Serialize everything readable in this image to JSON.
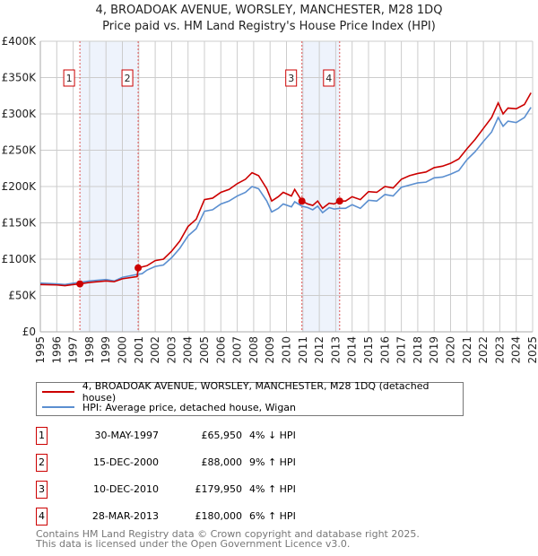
{
  "chart_data": {
    "type": "line",
    "title": "4, BROADOAK AVENUE, WORSLEY, MANCHESTER, M28 1DQ",
    "subtitle": "Price paid vs. HM Land Registry's House Price Index (HPI)",
    "xlim": [
      1995,
      2025
    ],
    "ylim": [
      0,
      400000
    ],
    "y_ticks": [
      {
        "v": 0,
        "label": "£0"
      },
      {
        "v": 50000,
        "label": "£50K"
      },
      {
        "v": 100000,
        "label": "£100K"
      },
      {
        "v": 150000,
        "label": "£150K"
      },
      {
        "v": 200000,
        "label": "£200K"
      },
      {
        "v": 250000,
        "label": "£250K"
      },
      {
        "v": 300000,
        "label": "£300K"
      },
      {
        "v": 350000,
        "label": "£350K"
      },
      {
        "v": 400000,
        "label": "£400K"
      }
    ],
    "x_ticks": [
      "1995",
      "1996",
      "1997",
      "1998",
      "1999",
      "2000",
      "2001",
      "2002",
      "2003",
      "2004",
      "2005",
      "2006",
      "2007",
      "2008",
      "2009",
      "2010",
      "2011",
      "2012",
      "2013",
      "2014",
      "2015",
      "2016",
      "2017",
      "2018",
      "2019",
      "2020",
      "2021",
      "2022",
      "2023",
      "2024",
      "2025"
    ],
    "grid": true,
    "colors": {
      "property": "#cc0000",
      "hpi": "#5b8fd0",
      "shade": "#eef3fc"
    },
    "series": [
      {
        "name": "4, BROADOAK AVENUE, WORSLEY, MANCHESTER, M28 1DQ (detached house)",
        "points": [
          [
            1995,
            65000
          ],
          [
            1996,
            64500
          ],
          [
            1996.5,
            63500
          ],
          [
            1997,
            65000
          ],
          [
            1997.41,
            65950
          ],
          [
            1998,
            68000
          ],
          [
            1999,
            70000
          ],
          [
            1999.5,
            69000
          ],
          [
            2000,
            73000
          ],
          [
            2000.9,
            76000
          ],
          [
            2000.96,
            88000
          ],
          [
            2001.5,
            91000
          ],
          [
            2002,
            98000
          ],
          [
            2002.5,
            100000
          ],
          [
            2003,
            111000
          ],
          [
            2003.5,
            125000
          ],
          [
            2004,
            145000
          ],
          [
            2004.5,
            155000
          ],
          [
            2005,
            182000
          ],
          [
            2005.5,
            184000
          ],
          [
            2006,
            192000
          ],
          [
            2006.5,
            196000
          ],
          [
            2007,
            204000
          ],
          [
            2007.5,
            210000
          ],
          [
            2007.9,
            219000
          ],
          [
            2008.3,
            215000
          ],
          [
            2008.8,
            197000
          ],
          [
            2009.1,
            180000
          ],
          [
            2009.5,
            186000
          ],
          [
            2009.8,
            192000
          ],
          [
            2010.3,
            187000
          ],
          [
            2010.5,
            196000
          ],
          [
            2010.94,
            179950
          ],
          [
            2011.3,
            176000
          ],
          [
            2011.6,
            174000
          ],
          [
            2011.9,
            180000
          ],
          [
            2012.2,
            170000
          ],
          [
            2012.6,
            177000
          ],
          [
            2012.9,
            176000
          ],
          [
            2013.24,
            180000
          ],
          [
            2013.6,
            180000
          ],
          [
            2014,
            186000
          ],
          [
            2014.5,
            182000
          ],
          [
            2015,
            193000
          ],
          [
            2015.5,
            192000
          ],
          [
            2016,
            200000
          ],
          [
            2016.5,
            198000
          ],
          [
            2017,
            210000
          ],
          [
            2017.5,
            215000
          ],
          [
            2018,
            218000
          ],
          [
            2018.5,
            220000
          ],
          [
            2019,
            226000
          ],
          [
            2019.5,
            228000
          ],
          [
            2020,
            232000
          ],
          [
            2020.5,
            238000
          ],
          [
            2021,
            252000
          ],
          [
            2021.5,
            265000
          ],
          [
            2022,
            280000
          ],
          [
            2022.5,
            295000
          ],
          [
            2022.9,
            315000
          ],
          [
            2023.2,
            300000
          ],
          [
            2023.5,
            308000
          ],
          [
            2024,
            307000
          ],
          [
            2024.5,
            313000
          ],
          [
            2024.9,
            329000
          ]
        ]
      },
      {
        "name": "HPI: Average price, detached house, Wigan",
        "points": [
          [
            1995,
            67000
          ],
          [
            1996,
            66000
          ],
          [
            1996.5,
            65000
          ],
          [
            1997,
            67000
          ],
          [
            1997.41,
            68000
          ],
          [
            1998,
            70000
          ],
          [
            1999,
            72000
          ],
          [
            1999.5,
            70000
          ],
          [
            2000,
            75000
          ],
          [
            2000.9,
            79000
          ],
          [
            2001.2,
            80000
          ],
          [
            2001.5,
            85000
          ],
          [
            2002,
            90000
          ],
          [
            2002.5,
            92000
          ],
          [
            2003,
            102000
          ],
          [
            2003.5,
            115000
          ],
          [
            2004,
            132000
          ],
          [
            2004.5,
            142000
          ],
          [
            2005,
            166000
          ],
          [
            2005.5,
            168000
          ],
          [
            2006,
            176000
          ],
          [
            2006.5,
            180000
          ],
          [
            2007,
            187000
          ],
          [
            2007.5,
            192000
          ],
          [
            2007.9,
            200000
          ],
          [
            2008.3,
            197000
          ],
          [
            2008.8,
            180000
          ],
          [
            2009.1,
            165000
          ],
          [
            2009.5,
            170000
          ],
          [
            2009.8,
            176000
          ],
          [
            2010.3,
            172000
          ],
          [
            2010.5,
            179000
          ],
          [
            2010.94,
            173000
          ],
          [
            2011.3,
            171000
          ],
          [
            2011.6,
            168000
          ],
          [
            2011.9,
            173000
          ],
          [
            2012.2,
            164000
          ],
          [
            2012.6,
            171000
          ],
          [
            2012.9,
            169000
          ],
          [
            2013.24,
            170000
          ],
          [
            2013.6,
            170000
          ],
          [
            2014,
            175000
          ],
          [
            2014.5,
            170000
          ],
          [
            2015,
            181000
          ],
          [
            2015.5,
            180000
          ],
          [
            2016,
            189000
          ],
          [
            2016.5,
            187000
          ],
          [
            2017,
            199000
          ],
          [
            2017.5,
            202000
          ],
          [
            2018,
            205000
          ],
          [
            2018.5,
            206000
          ],
          [
            2019,
            212000
          ],
          [
            2019.5,
            213000
          ],
          [
            2020,
            217000
          ],
          [
            2020.5,
            222000
          ],
          [
            2021,
            237000
          ],
          [
            2021.5,
            248000
          ],
          [
            2022,
            262000
          ],
          [
            2022.5,
            275000
          ],
          [
            2022.9,
            295000
          ],
          [
            2023.2,
            283000
          ],
          [
            2023.5,
            290000
          ],
          [
            2024,
            288000
          ],
          [
            2024.5,
            295000
          ],
          [
            2024.9,
            309000
          ]
        ]
      }
    ],
    "transactions": [
      {
        "id": "1",
        "x": 1997.41,
        "value": 65950,
        "date": "30-MAY-1997",
        "price": "£65,950",
        "hpi": "4% ↓ HPI"
      },
      {
        "id": "2",
        "x": 2000.96,
        "value": 88000,
        "date": "15-DEC-2000",
        "price": "£88,000",
        "hpi": "9% ↑ HPI"
      },
      {
        "id": "3",
        "x": 2010.94,
        "value": 179950,
        "date": "10-DEC-2010",
        "price": "£179,950",
        "hpi": "4% ↑ HPI"
      },
      {
        "id": "4",
        "x": 2013.24,
        "value": 180000,
        "date": "28-MAR-2013",
        "price": "£180,000",
        "hpi": "6% ↑ HPI"
      }
    ],
    "shaded_ranges": [
      [
        1997.41,
        2000.96
      ],
      [
        2010.94,
        2013.24
      ]
    ],
    "legend": [
      "4, BROADOAK AVENUE, WORSLEY, MANCHESTER, M28 1DQ (detached house)",
      "HPI: Average price, detached house, Wigan"
    ]
  },
  "footer": {
    "line1": "Contains HM Land Registry data © Crown copyright and database right 2025.",
    "line2": "This data is licensed under the Open Government Licence v3.0."
  }
}
